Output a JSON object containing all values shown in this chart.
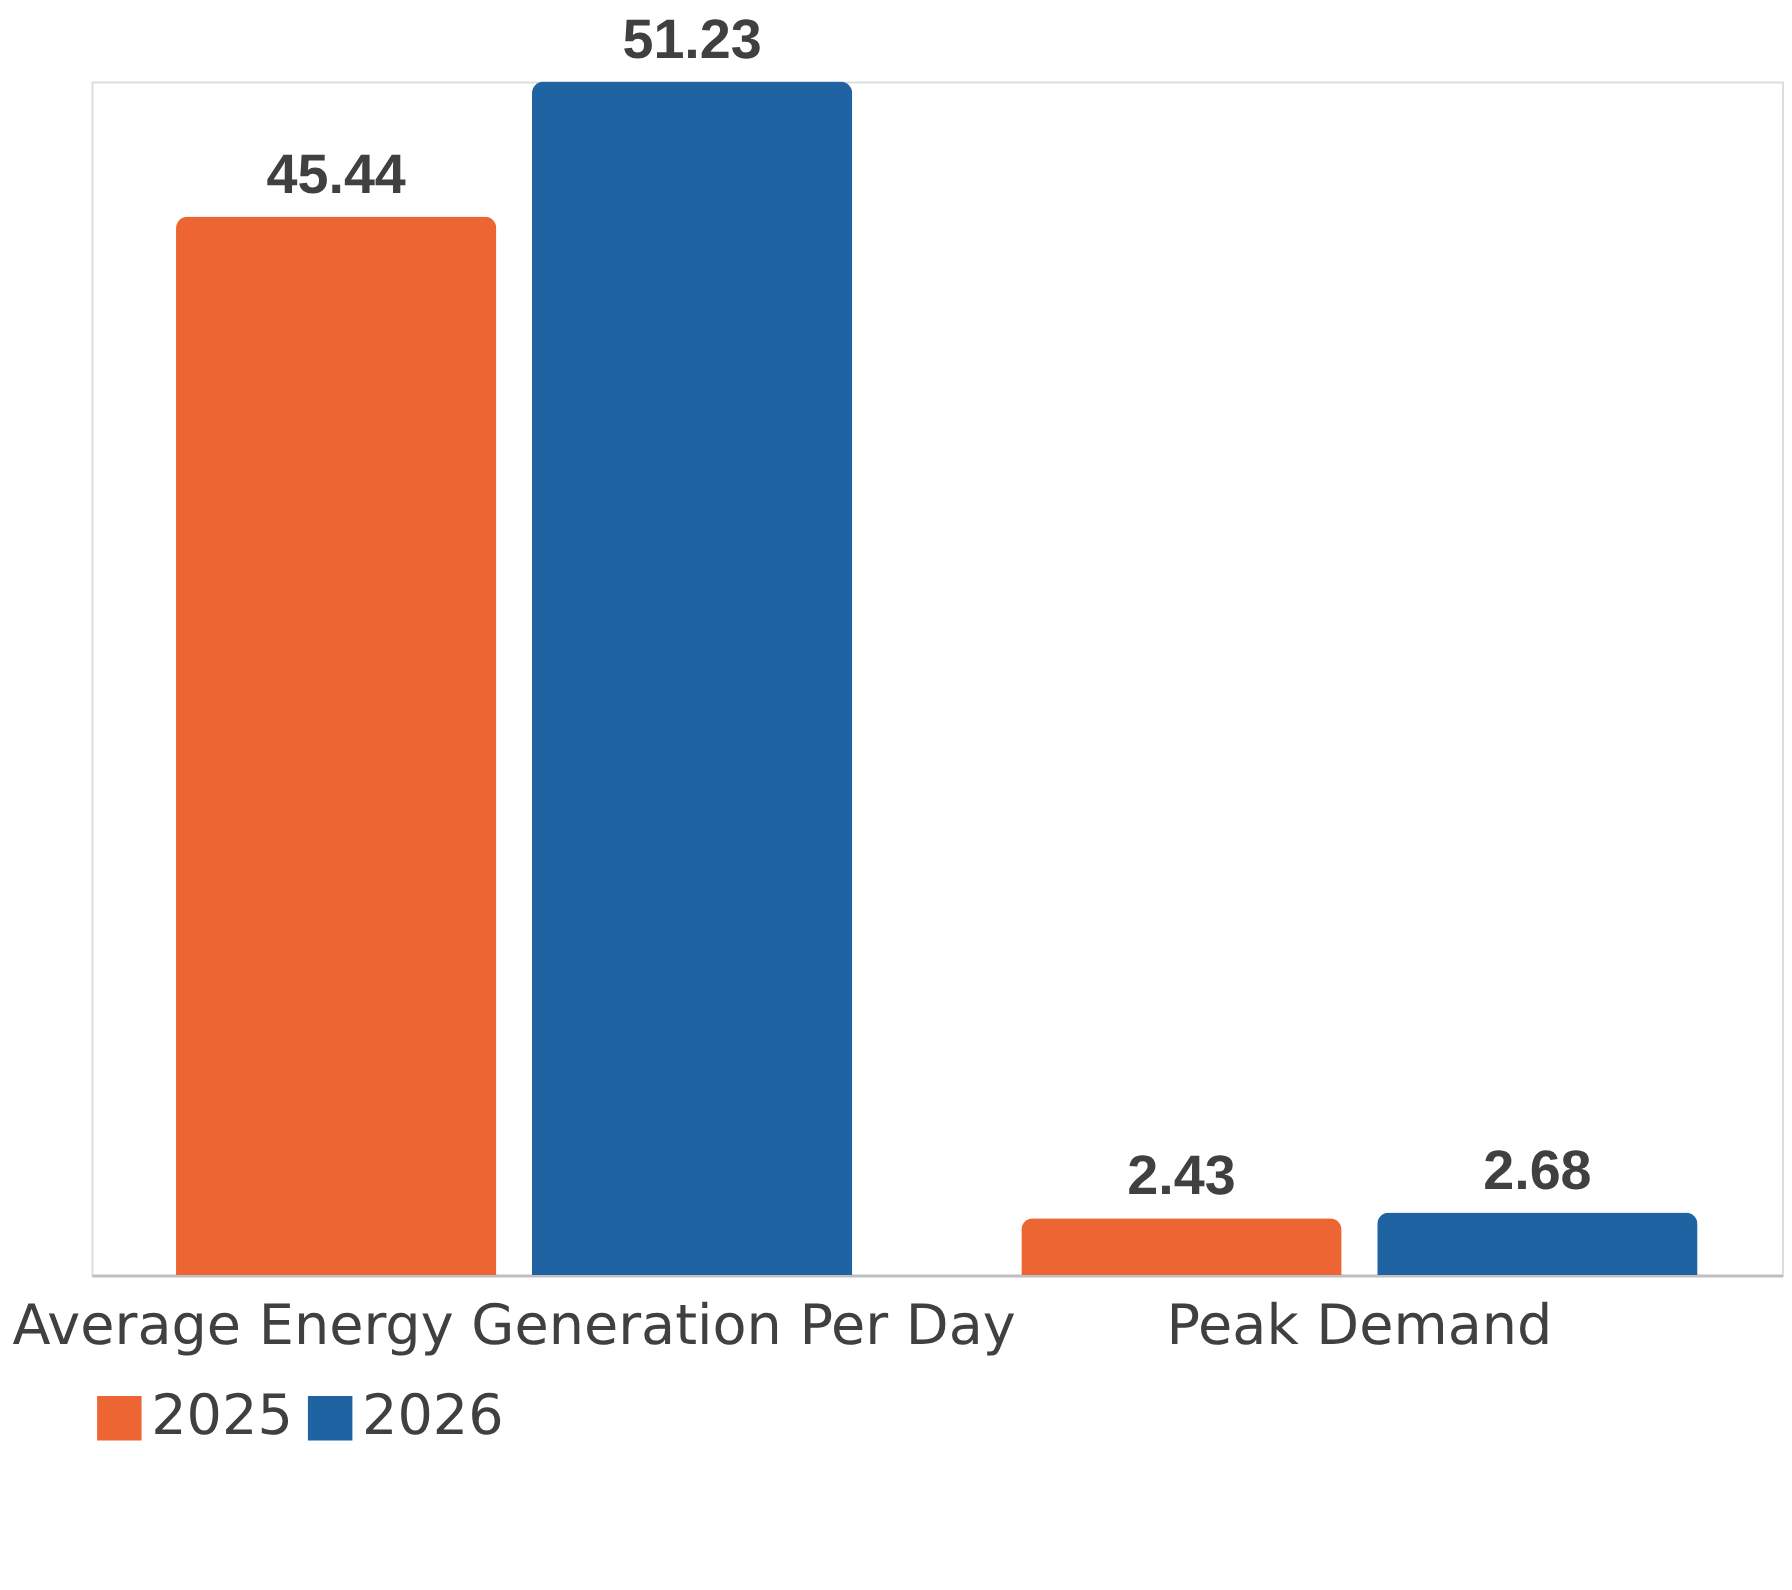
{
  "chart_data": {
    "type": "bar",
    "categories": [
      "Average Energy Generation Per Day",
      "Peak Demand"
    ],
    "series": [
      {
        "name": "2025",
        "color": "#ed6532",
        "values": [
          45.44,
          2.43
        ]
      },
      {
        "name": "2026",
        "color": "#1f63a2",
        "values": [
          51.23,
          2.68
        ]
      }
    ],
    "data_labels": true,
    "legend": "bottom",
    "grid": false
  }
}
